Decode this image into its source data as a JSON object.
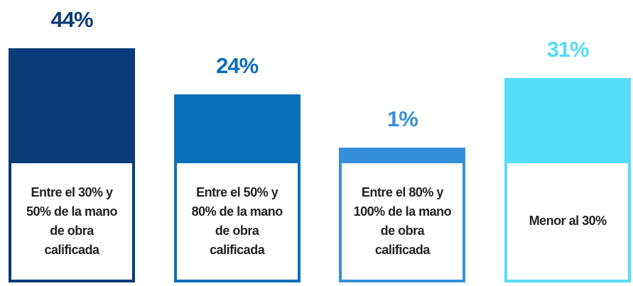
{
  "chart_data": {
    "type": "bar",
    "categories": [
      "Entre el 30% y 50% de la mano de obra calificada",
      "Entre el 50% y 80% de la mano de obra calificada",
      "Entre el 80% y 100% de la mano de obra calificada",
      "Menor al 30%"
    ],
    "values": [
      44,
      24,
      1,
      31
    ],
    "value_labels": [
      "44%",
      "24%",
      "1%",
      "31%"
    ],
    "colors": [
      "#0b3b78",
      "#0a6fba",
      "#3590d9",
      "#55dcf7"
    ]
  }
}
